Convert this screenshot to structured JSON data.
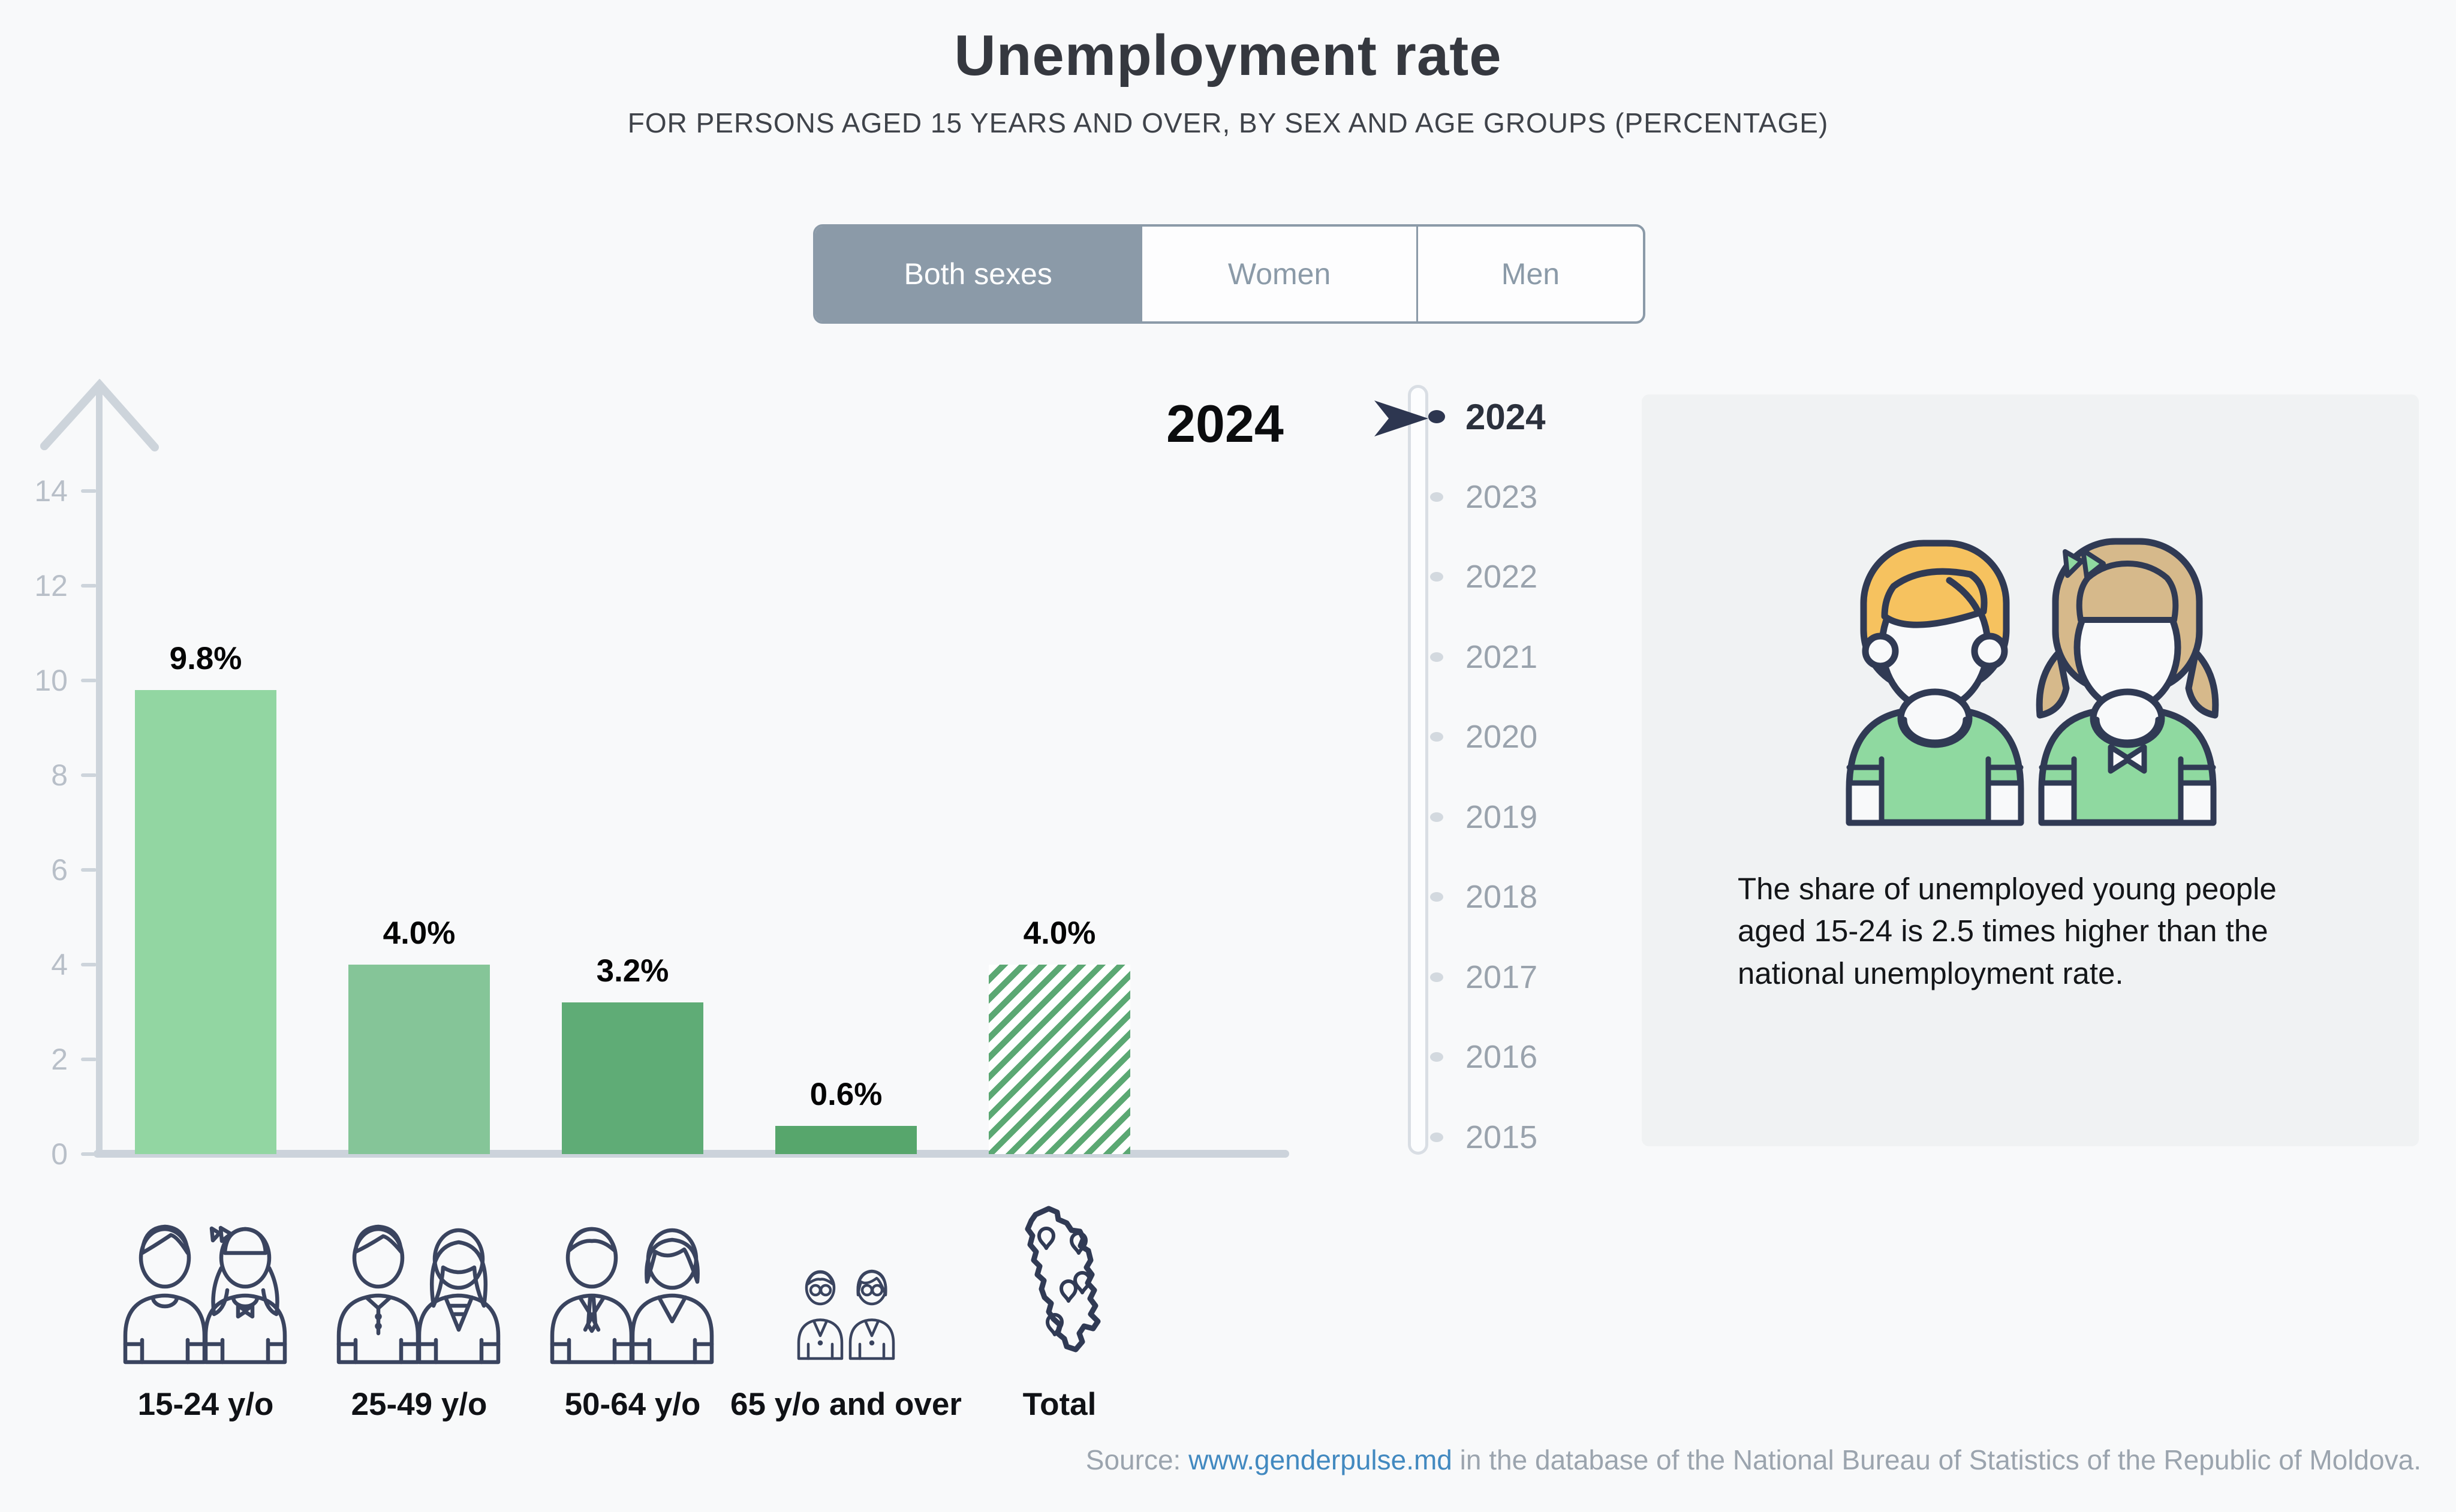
{
  "page": {
    "background": "#f8f9fa"
  },
  "header": {
    "title": "Unemployment rate",
    "subtitle": "FOR PERSONS AGED 15 YEARS AND OVER, BY SEX AND AGE GROUPS (PERCENTAGE)"
  },
  "tabs": [
    {
      "label": "Both sexes",
      "selected": true
    },
    {
      "label": "Women",
      "selected": false
    },
    {
      "label": "Men",
      "selected": false
    }
  ],
  "chart_data": {
    "type": "bar",
    "year_label": "2024",
    "categories": [
      "15-24 y/o",
      "25-49 y/o",
      "50-64 y/o",
      "65 y/o and over",
      "Total"
    ],
    "values": [
      9.8,
      4.0,
      3.2,
      0.6,
      4.0
    ],
    "value_labels": [
      "9.8%",
      "4.0%",
      "3.2%",
      "0.6%",
      "4.0%"
    ],
    "bar_colors": [
      "#92d6a2",
      "#85c598",
      "#5fac76",
      "#57a66c",
      "hatch"
    ],
    "hatch_color": "#5ba873",
    "ylim": [
      0,
      14
    ],
    "yticks": [
      0,
      2,
      4,
      6,
      8,
      10,
      12,
      14
    ],
    "grid": false,
    "xlabel": "",
    "ylabel": "",
    "axis_color": "#cdd4db",
    "tick_label_color": "#b8bfc8"
  },
  "timeline": {
    "years": [
      "2024",
      "2023",
      "2022",
      "2021",
      "2020",
      "2019",
      "2018",
      "2017",
      "2016",
      "2015"
    ],
    "selected_year": "2024"
  },
  "info_panel": {
    "text": "The share of unemployed young people aged 15-24 is 2.5 times higher than the national unemployment rate."
  },
  "source": {
    "prefix": "Source: ",
    "link_text": "www.genderpulse.md",
    "suffix": " in the database of the National Bureau of Statistics of the Republic of Moldova.",
    "link_color": "#4289c0"
  },
  "icon_colors": {
    "outline_navy": "#303a54",
    "boy_hair_yellow": "#f6c25f",
    "girl_hair_tan": "#d6b98b",
    "shirt_green": "#8fd9a0"
  }
}
